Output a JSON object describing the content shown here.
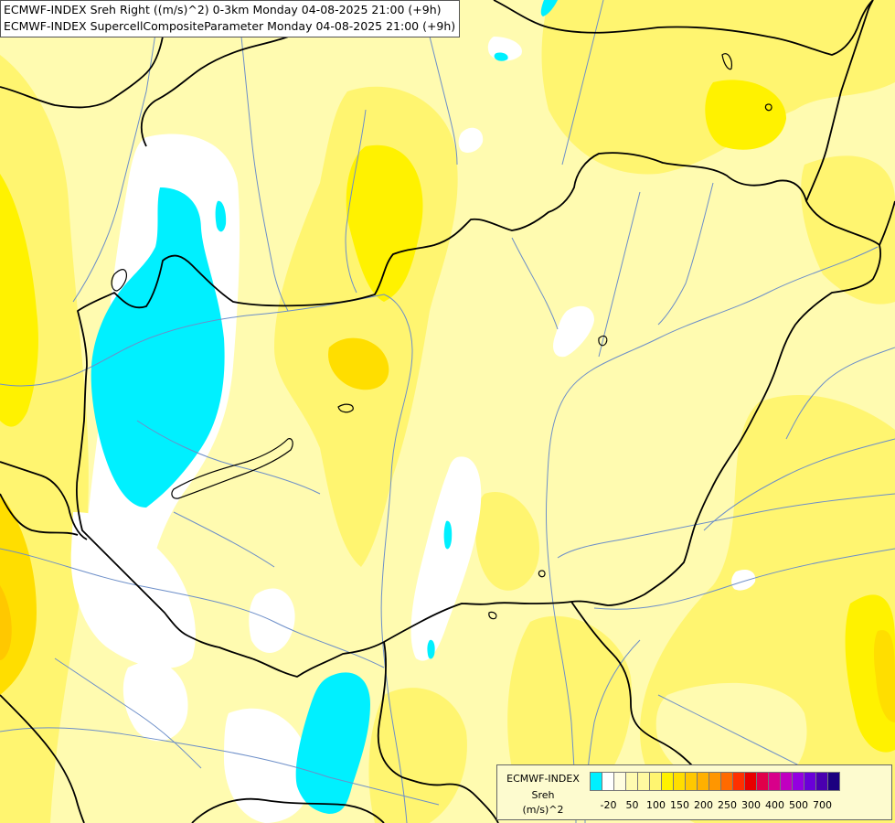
{
  "title": {
    "line1": "ECMWF-INDEX Sreh Right ((m/s)^2) 0-3km Monday 04-08-2025 21:00 (+9h)",
    "line2": "ECMWF-INDEX SupercellCompositeParameter Monday 04-08-2025 21:00 (+9h)"
  },
  "legend": {
    "line1": "ECMWF-INDEX",
    "line2": "Sreh",
    "line3": "(m/s)^2",
    "colors": [
      "#00f0ff",
      "#ffffff",
      "#fffde0",
      "#fffbb0",
      "#fff9a0",
      "#fff570",
      "#fff200",
      "#ffde00",
      "#ffc800",
      "#ffb000",
      "#ff9600",
      "#ff6a00",
      "#ff3000",
      "#e80000",
      "#e0004a",
      "#d8008a",
      "#c000c0",
      "#9400e0",
      "#6a00d8",
      "#4a00b0",
      "#1c0080"
    ],
    "tick_labels": [
      "-20",
      "50",
      "100",
      "150",
      "200",
      "250",
      "300",
      "400",
      "500",
      "700"
    ]
  },
  "map": {
    "colors": {
      "cyan": "#00f0ff",
      "white": "#ffffff",
      "lightest": "#fffbb0",
      "light": "#fff9a0",
      "mid": "#fff570",
      "strong": "#fff200",
      "gold": "#ffde00",
      "orange": "#ffc800",
      "river": "#6c8ec8",
      "border": "#000000"
    }
  }
}
